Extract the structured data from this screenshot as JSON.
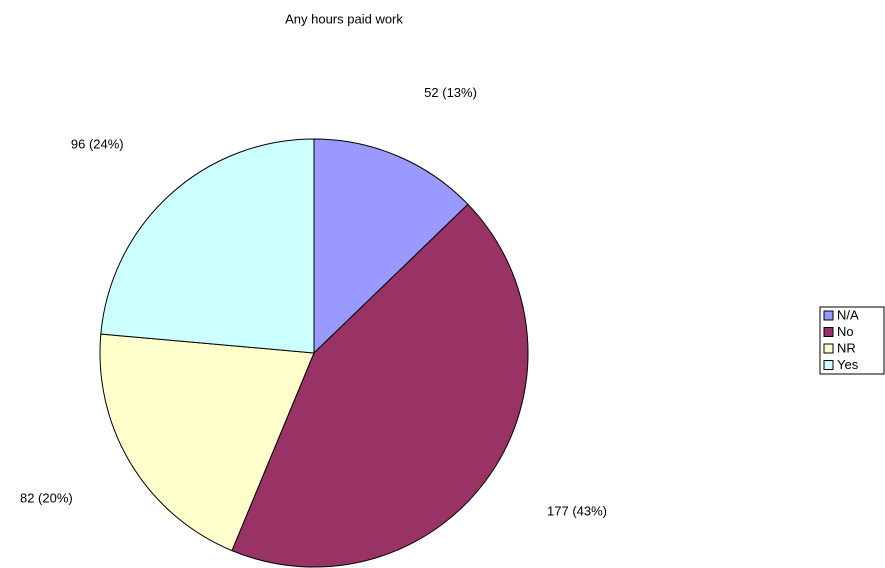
{
  "chart_data": {
    "type": "pie",
    "title": "Any hours paid work",
    "categories": [
      "N/A",
      "No",
      "NR",
      "Yes"
    ],
    "values": [
      52,
      177,
      82,
      96
    ],
    "value_labels": [
      "52 (13%)",
      "177 (43%)",
      "82 (20%)",
      "96 (24%)"
    ],
    "colors": [
      "#9999ff",
      "#993366",
      "#ffffcc",
      "#ccffff"
    ],
    "legend": "right"
  }
}
